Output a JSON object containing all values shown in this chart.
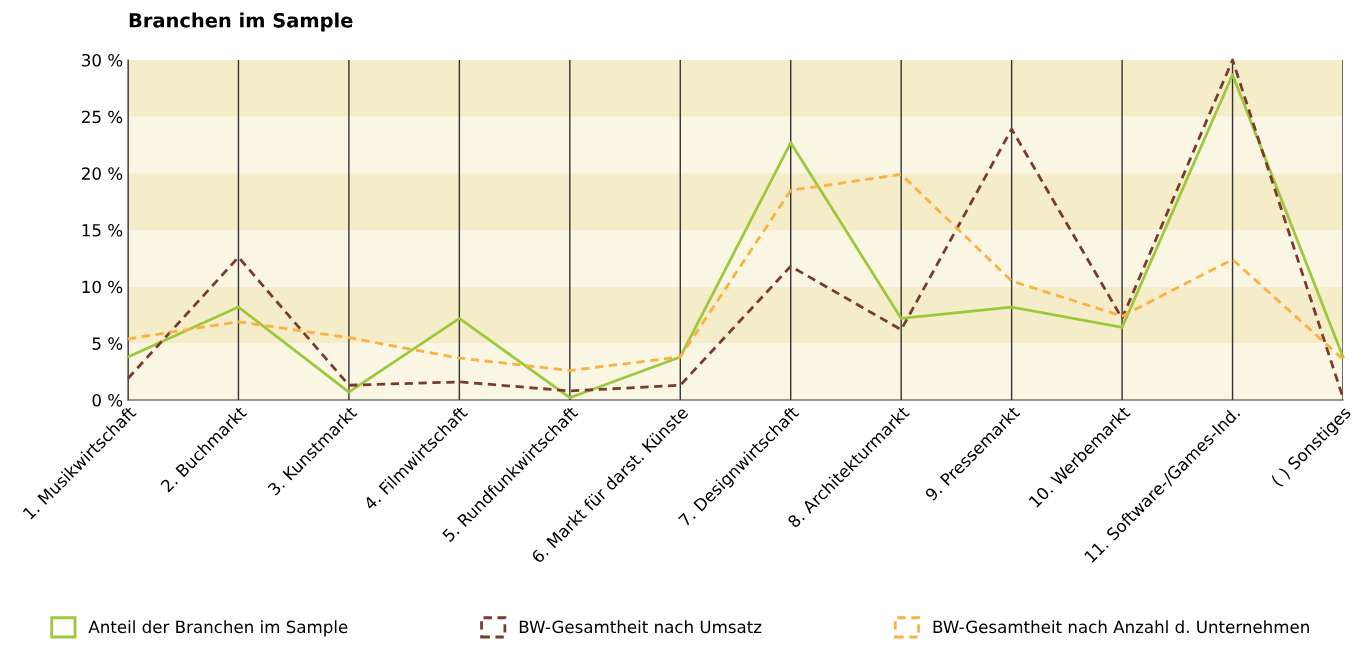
{
  "chart_data": {
    "type": "line",
    "title": "Branchen im Sample",
    "categories": [
      "1. Musikwirtschaft",
      "2. Buchmarkt",
      "3. Kunstmarkt",
      "4. Filmwirtschaft",
      "5. Rundfunkwirtschaft",
      "6. Markt für darst. Künste",
      "7. Designwirtschaft",
      "8. Architekturmarkt",
      "9. Pressemarkt",
      "10. Werbemarkt",
      "11. Software-/Games-Ind.",
      "( ) Sonstiges"
    ],
    "series": [
      {
        "name": "Anteil der Branchen im Sample",
        "color": "#9dc83c",
        "line_style": "solid",
        "values": [
          3.8,
          8.2,
          0.7,
          7.2,
          0.2,
          3.8,
          22.7,
          7.2,
          8.2,
          6.4,
          28.7,
          3.8
        ]
      },
      {
        "name": "BW-Gesamtheit nach Umsatz",
        "color": "#7a3b2e",
        "line_style": "dashed",
        "values": [
          1.9,
          12.6,
          1.3,
          1.6,
          0.8,
          1.3,
          11.8,
          6.2,
          23.9,
          7.2,
          30,
          0.2
        ]
      },
      {
        "name": "BW-Gesamtheit nach Anzahl d. Unternehmen",
        "color": "#fbb040",
        "line_style": "dashed",
        "values": [
          5.4,
          6.9,
          5.5,
          3.7,
          2.6,
          3.8,
          18.5,
          19.9,
          10.5,
          7.4,
          12.4,
          3.6
        ]
      }
    ],
    "ylim": [
      0,
      30
    ],
    "yticks": [
      {
        "value": 0,
        "label": "0 %"
      },
      {
        "value": 5,
        "label": "5 %"
      },
      {
        "value": 10,
        "label": "10 %"
      },
      {
        "value": 15,
        "label": "15 %"
      },
      {
        "value": 20,
        "label": "20 %"
      },
      {
        "value": 25,
        "label": "25 %"
      },
      {
        "value": 30,
        "label": "30 %"
      }
    ],
    "bands": [
      {
        "axis": "y",
        "from": 0,
        "to": 5,
        "color": "#faf6e4"
      },
      {
        "axis": "y",
        "from": 5,
        "to": 10,
        "color": "#f5edca"
      },
      {
        "axis": "y",
        "from": 10,
        "to": 15,
        "color": "#faf6e4"
      },
      {
        "axis": "y",
        "from": 15,
        "to": 20,
        "color": "#f5edca"
      },
      {
        "axis": "y",
        "from": 20,
        "to": 25,
        "color": "#faf6e4"
      },
      {
        "axis": "y",
        "from": 25,
        "to": 30,
        "color": "#f5edca"
      }
    ],
    "grid": "x",
    "legend": "bottom",
    "marker": "none"
  }
}
